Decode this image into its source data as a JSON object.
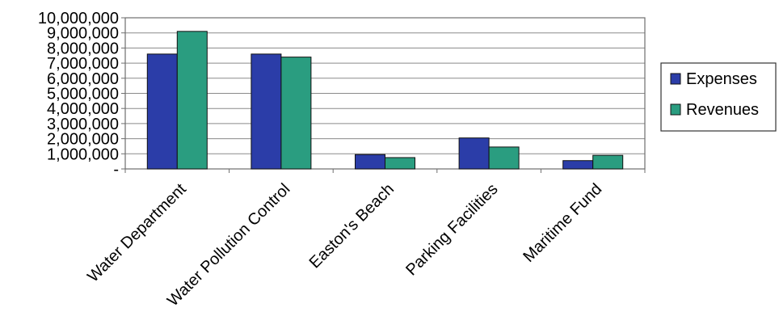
{
  "chart_data": {
    "type": "bar",
    "title": "",
    "xlabel": "",
    "ylabel": "",
    "categories": [
      "Water Department",
      "Water Pollution Control",
      "Easton's Beach",
      "Parking Facilities",
      "Maritime Fund"
    ],
    "series": [
      {
        "name": "Expenses",
        "values": [
          7600000,
          7600000,
          950000,
          2050000,
          550000
        ],
        "color": "#2b3da8"
      },
      {
        "name": "Revenues",
        "values": [
          9100000,
          7400000,
          750000,
          1450000,
          900000
        ],
        "color": "#2a9d80"
      }
    ],
    "ylim": [
      0,
      10000000
    ],
    "yticks": [
      {
        "value": 0,
        "label": "-"
      },
      {
        "value": 1000000,
        "label": "1,000,000"
      },
      {
        "value": 2000000,
        "label": "2,000,000"
      },
      {
        "value": 3000000,
        "label": "3,000,000"
      },
      {
        "value": 4000000,
        "label": "4,000,000"
      },
      {
        "value": 5000000,
        "label": "5,000,000"
      },
      {
        "value": 6000000,
        "label": "6,000,000"
      },
      {
        "value": 7000000,
        "label": "7,000,000"
      },
      {
        "value": 8000000,
        "label": "8,000,000"
      },
      {
        "value": 9000000,
        "label": "9,000,000"
      },
      {
        "value": 10000000,
        "label": "10,000,000"
      }
    ],
    "grid": true,
    "legend_position": "right"
  }
}
